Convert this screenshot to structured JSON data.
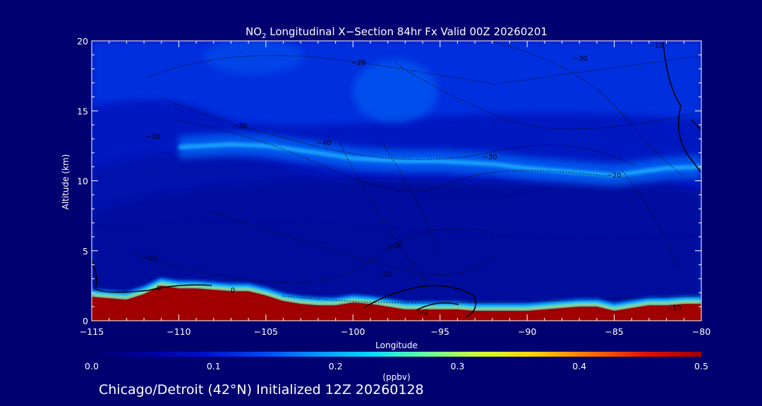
{
  "chart_data": {
    "type": "heatmap",
    "title_prefix": "NO",
    "title_subscript": "2",
    "title_rest": " Longitudinal X−Section 84hr  Fx Valid 00Z 20260201",
    "xlabel": "Longitude",
    "ylabel": "Altitude (km)",
    "xlim": [
      -115,
      -80
    ],
    "ylim": [
      0,
      20
    ],
    "x_ticks": [
      -115,
      -110,
      -105,
      -100,
      -95,
      -90,
      -85,
      -80
    ],
    "x_tick_labels": [
      "−115",
      "−110",
      "−105",
      "−100",
      "−95",
      "−90",
      "−85",
      "−80"
    ],
    "y_ticks": [
      0,
      5,
      10,
      15,
      20
    ],
    "y_tick_labels": [
      "0",
      "5",
      "10",
      "15",
      "20"
    ],
    "colorbar": {
      "label": "(ppbv)",
      "range": [
        0.0,
        0.5
      ],
      "ticks": [
        0.0,
        0.1,
        0.2,
        0.3,
        0.4,
        0.5
      ],
      "tick_labels": [
        "0.0",
        "0.1",
        "0.2",
        "0.3",
        "0.4",
        "0.5"
      ],
      "colors": [
        "#000070",
        "#0000a0",
        "#0010c8",
        "#0040f0",
        "#0090ff",
        "#00d8ff",
        "#60ffa0",
        "#d0ff30",
        "#ffd000",
        "#ff7000",
        "#e01000",
        "#a00000"
      ]
    },
    "high_no2_layer_top_km": {
      "lon": [
        -115,
        -114,
        -113,
        -112,
        -111,
        -110,
        -109,
        -108,
        -107,
        -106,
        -105,
        -104,
        -103,
        -102,
        -101,
        -100,
        -99,
        -98,
        -97,
        -96,
        -95,
        -94,
        -93,
        -92,
        -91,
        -90,
        -89,
        -88,
        -87,
        -86,
        -85,
        -84,
        -83,
        -82,
        -81,
        -80
      ],
      "alt": [
        1.7,
        1.6,
        1.5,
        1.9,
        2.5,
        2.3,
        2.3,
        2.2,
        2.1,
        2.1,
        1.8,
        1.4,
        1.2,
        1.1,
        1.1,
        1.3,
        1.2,
        1.0,
        0.8,
        0.8,
        0.8,
        0.8,
        0.7,
        0.7,
        0.7,
        0.7,
        0.8,
        0.9,
        1.0,
        1.0,
        0.7,
        0.9,
        1.1,
        1.1,
        1.2,
        1.2
      ]
    },
    "upper_enhancement_band": {
      "lon": [
        -110,
        -107,
        -105,
        -102,
        -100,
        -97,
        -95,
        -92,
        -90,
        -87,
        -85,
        -82,
        -80
      ],
      "alt": [
        12.4,
        12.6,
        12.5,
        12.0,
        11.6,
        11.4,
        11.4,
        11.2,
        10.9,
        10.6,
        10.4,
        10.9,
        11.0
      ],
      "peak_ppbv": 0.22
    },
    "temperature_contour_labels": [
      "−20",
      "−10",
      "−30",
      "−40",
      "−30",
      "−30",
      "−20",
      "−10",
      "−20",
      "−10",
      "0",
      "0",
      "−2",
      "−10",
      "−10"
    ]
  },
  "footer": "Chicago/Detroit (42°N) Initialized 12Z 20260128"
}
